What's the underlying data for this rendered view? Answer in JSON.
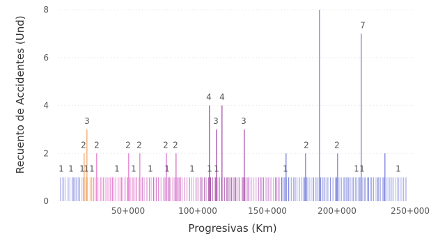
{
  "chart_data": {
    "type": "bar",
    "title": "",
    "xlabel": "Progresivas (Km)",
    "ylabel": "Recuento de Accidentes (Und)",
    "xlim": [
      0,
      250000
    ],
    "ylim": [
      0,
      8
    ],
    "x_tick_values": [
      50000,
      100000,
      150000,
      200000,
      250000
    ],
    "x_tick_labels": [
      "50+000",
      "100+000",
      "150+000",
      "200+000",
      "250+000"
    ],
    "y_ticks": [
      0,
      2,
      4,
      6,
      8
    ],
    "grid": true,
    "legend": "none",
    "colors": {
      "low": "#7b80d8",
      "orange": "#f0a060",
      "pink": "#e070c8",
      "purple": "#a040a0",
      "blue": "#6f78d6"
    },
    "bars_base_value": 1,
    "bars_base_ranges": [
      {
        "from": 1000,
        "to": 18000,
        "color": "#8a8fe0"
      },
      {
        "from": 18000,
        "to": 25000,
        "color": "#f0a060"
      },
      {
        "from": 25000,
        "to": 60000,
        "color": "#e070c8"
      },
      {
        "from": 60000,
        "to": 100000,
        "color": "#cf60c0"
      },
      {
        "from": 100000,
        "to": 135000,
        "color": "#a040a0"
      },
      {
        "from": 135000,
        "to": 160000,
        "color": "#c070c8"
      },
      {
        "from": 160000,
        "to": 250000,
        "color": "#6f78d6"
      }
    ],
    "tall_bars": [
      {
        "x": 18000,
        "value": 2
      },
      {
        "x": 20000,
        "value": 3
      },
      {
        "x": 27000,
        "value": 2
      },
      {
        "x": 50000,
        "value": 2
      },
      {
        "x": 58000,
        "value": 2
      },
      {
        "x": 77000,
        "value": 2
      },
      {
        "x": 84000,
        "value": 2
      },
      {
        "x": 108000,
        "value": 4
      },
      {
        "x": 113000,
        "value": 3
      },
      {
        "x": 117000,
        "value": 4
      },
      {
        "x": 133000,
        "value": 3
      },
      {
        "x": 163000,
        "value": 2
      },
      {
        "x": 177000,
        "value": 2
      },
      {
        "x": 187000,
        "value": 8
      },
      {
        "x": 200000,
        "value": 2
      },
      {
        "x": 217000,
        "value": 7
      },
      {
        "x": 234000,
        "value": 2
      }
    ],
    "data_labels": [
      {
        "x": 2000,
        "value": 1,
        "text": "1"
      },
      {
        "x": 9000,
        "value": 1,
        "text": "1"
      },
      {
        "x": 17000,
        "value": 1,
        "text": "1"
      },
      {
        "x": 18000,
        "value": 2,
        "text": "2"
      },
      {
        "x": 20000,
        "value": 1,
        "text": "1"
      },
      {
        "x": 20500,
        "value": 3,
        "text": "3"
      },
      {
        "x": 24000,
        "value": 1,
        "text": "1"
      },
      {
        "x": 27500,
        "value": 2,
        "text": "2"
      },
      {
        "x": 42000,
        "value": 1,
        "text": "1"
      },
      {
        "x": 50000,
        "value": 2,
        "text": "2"
      },
      {
        "x": 54000,
        "value": 1,
        "text": "1"
      },
      {
        "x": 58000,
        "value": 2,
        "text": "2"
      },
      {
        "x": 66000,
        "value": 1,
        "text": "1"
      },
      {
        "x": 77000,
        "value": 2,
        "text": "2"
      },
      {
        "x": 78000,
        "value": 1,
        "text": "1"
      },
      {
        "x": 84000,
        "value": 2,
        "text": "2"
      },
      {
        "x": 96000,
        "value": 1,
        "text": "1"
      },
      {
        "x": 108000,
        "value": 4,
        "text": "4"
      },
      {
        "x": 108500,
        "value": 1,
        "text": "1"
      },
      {
        "x": 113000,
        "value": 3,
        "text": "3"
      },
      {
        "x": 113500,
        "value": 1,
        "text": "1"
      },
      {
        "x": 117500,
        "value": 4,
        "text": "4"
      },
      {
        "x": 133000,
        "value": 3,
        "text": "3"
      },
      {
        "x": 163000,
        "value": 1,
        "text": "1"
      },
      {
        "x": 178000,
        "value": 2,
        "text": "2"
      },
      {
        "x": 200000,
        "value": 2,
        "text": "2"
      },
      {
        "x": 214000,
        "value": 1,
        "text": "1"
      },
      {
        "x": 218000,
        "value": 1,
        "text": "1"
      },
      {
        "x": 218500,
        "value": 7,
        "text": "7"
      },
      {
        "x": 244000,
        "value": 1,
        "text": "1"
      }
    ]
  }
}
